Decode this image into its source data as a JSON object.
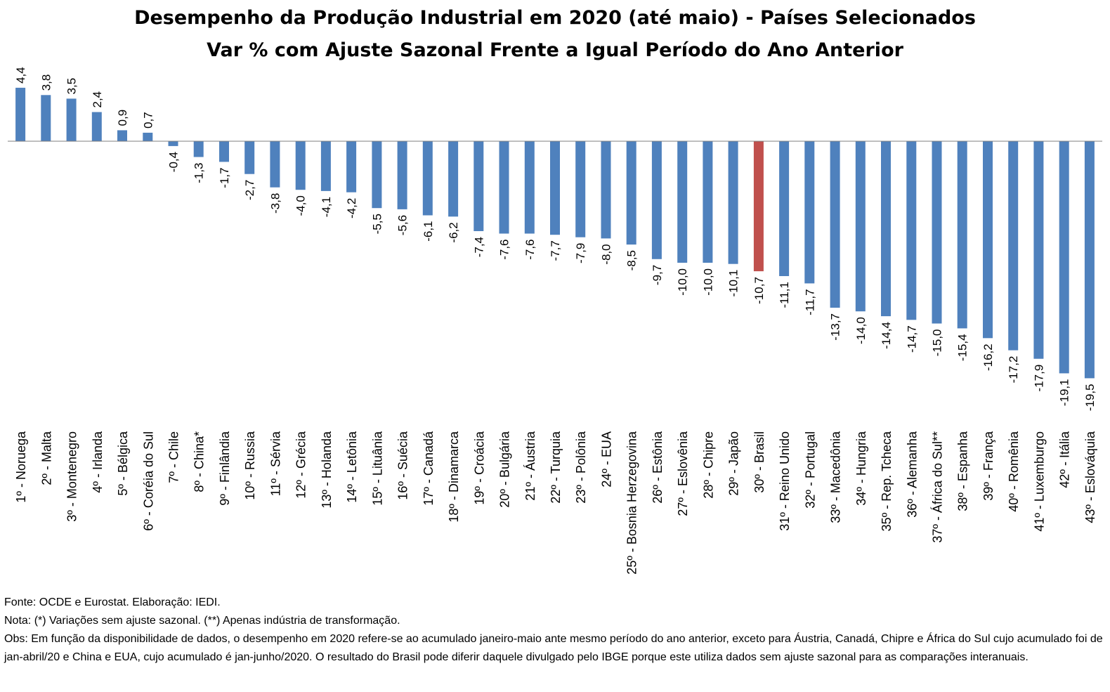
{
  "title": "Desempenho da Produção Industrial em 2020 (até maio) - Países Selecionados",
  "subtitle": "Var % com Ajuste Sazonal Frente a Igual Período do Ano Anterior",
  "colors": {
    "bar": "#4f81bd",
    "highlight": "#c0504d",
    "axis": "#7f7f7f"
  },
  "chart_data": {
    "type": "bar",
    "title": "Desempenho da Produção Industrial em 2020 (até maio) - Países Selecionados",
    "subtitle": "Var % com Ajuste Sazonal Frente a Igual Período do Ano Anterior",
    "categories": [
      "1º - Noruega",
      "2º - Malta",
      "3º - Montenegro",
      "4º - Irlanda",
      "5º - Bélgica",
      "6º - Coréia do Sul",
      "7º - Chile",
      "8º - China*",
      "9º - Finlândia",
      "10º - Russia",
      "11º - Sérvia",
      "12º - Grécia",
      "13º - Holanda",
      "14º - Letônia",
      "15º - Lituânia",
      "16º - Suécia",
      "17º - Canadá",
      "18º - Dinamarca",
      "19º - Croácia",
      "20º - Bulgária",
      "21º - Áustria",
      "22º - Turquia",
      "23º - Polônia",
      "24º - EUA",
      "25º - Bosnia Herzegovina",
      "26º - Estônia",
      "27º - Eslovênia",
      "28º - Chipre",
      "29º - Japão",
      "30º - Brasil",
      "31º - Reino Unido",
      "32º - Portugal",
      "33º - Macedônia",
      "34º - Hungria",
      "35º - Rep. Tcheca",
      "36º - Alemanha",
      "37º - África do Sul**",
      "38º - Espanha",
      "39º - França",
      "40º - Romênia",
      "41º - Luxemburgo",
      "42º - Itália",
      "43º - Eslováquia"
    ],
    "values": [
      4.4,
      3.8,
      3.5,
      2.4,
      0.9,
      0.7,
      -0.4,
      -1.3,
      -1.7,
      -2.7,
      -3.8,
      -4.0,
      -4.1,
      -4.2,
      -5.5,
      -5.6,
      -6.1,
      -6.2,
      -7.4,
      -7.6,
      -7.6,
      -7.7,
      -7.9,
      -8.0,
      -8.5,
      -9.7,
      -10.0,
      -10.0,
      -10.1,
      -10.7,
      -11.1,
      -11.7,
      -13.7,
      -14.0,
      -14.4,
      -14.7,
      -15.0,
      -15.4,
      -16.2,
      -17.2,
      -17.9,
      -19.1,
      -19.5
    ],
    "value_labels": [
      "4,4",
      "3,8",
      "3,5",
      "2,4",
      "0,9",
      "0,7",
      "-0,4",
      "-1,3",
      "-1,7",
      "-2,7",
      "-3,8",
      "-4,0",
      "-4,1",
      "-4,2",
      "-5,5",
      "-5,6",
      "-6,1",
      "-6,2",
      "-7,4",
      "-7,6",
      "-7,6",
      "-7,7",
      "-7,9",
      "-8,0",
      "-8,5",
      "-9,7",
      "-10,0",
      "-10,0",
      "-10,1",
      "-10,7",
      "-11,1",
      "-11,7",
      "-13,7",
      "-14,0",
      "-14,4",
      "-14,7",
      "-15,0",
      "-15,4",
      "-16,2",
      "-17,2",
      "-17,9",
      "-19,1",
      "-19,5"
    ],
    "highlight_index": 29,
    "ylim": [
      -19.5,
      4.4
    ],
    "grid": false,
    "legend": "none"
  },
  "notes": {
    "fonte": "Fonte: OCDE e Eurostat. Elaboração: IEDI.",
    "nota": "Nota: (*) Variações sem ajuste sazonal. (**) Apenas indústria de transformação.",
    "obs": "Obs: Em função da disponibilidade de dados, o desempenho em 2020 refere-se ao acumulado janeiro-maio ante mesmo período do ano anterior, exceto para Áustria, Canadá, Chipre e África do Sul cujo acumulado foi de jan-abril/20 e China e EUA, cujo acumulado é jan-junho/2020. O resultado do Brasil pode diferir daquele divulgado pelo IBGE porque este utiliza dados sem ajuste sazonal para as comparações interanuais."
  }
}
